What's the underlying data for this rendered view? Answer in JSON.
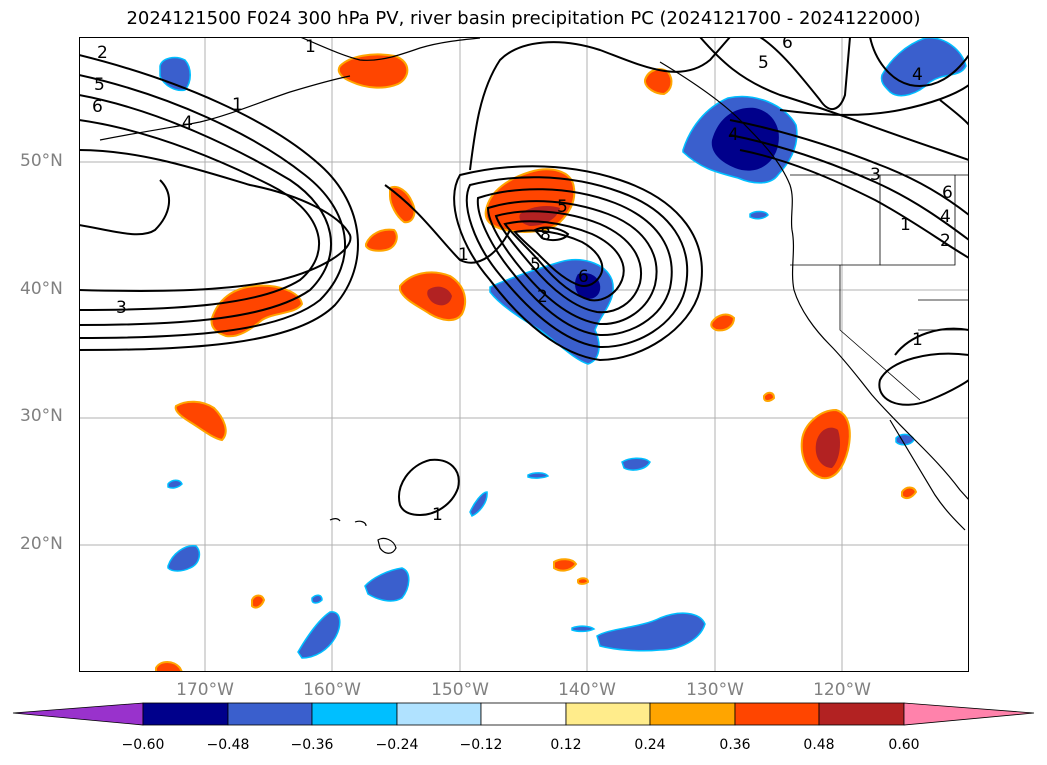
{
  "title": "2024121500 F024 300 hPa PV, river basin precipitation PC (2024121700 - 2024122000)",
  "latitude_labels": [
    "50°N",
    "40°N",
    "30°N",
    "20°N"
  ],
  "longitude_labels": [
    "170°W",
    "160°W",
    "150°W",
    "140°W",
    "130°W",
    "120°W"
  ],
  "contour_labels": [
    "2",
    "5",
    "6",
    "1",
    "4",
    "3",
    "1",
    "5",
    "8",
    "5",
    "2",
    "6",
    "1",
    "1",
    "6",
    "5",
    "4",
    "3",
    "6",
    "4",
    "1",
    "2",
    "4",
    "1"
  ],
  "colorbar": {
    "tick_labels": [
      "−0.60",
      "−0.48",
      "−0.36",
      "−0.24",
      "−0.12",
      "0.12",
      "0.24",
      "0.36",
      "0.48",
      "0.60"
    ],
    "colors": [
      "#9932cc",
      "#00008b",
      "#3a5fcd",
      "#00bfff",
      "#b0e2ff",
      "#ffffff",
      "#ffec8b",
      "#ffa500",
      "#ff4500",
      "#b22222",
      "#ff82ab"
    ]
  },
  "colors": {
    "negative_strong": "#00008b",
    "negative_mid": "#3a5fcd",
    "negative_light": "#00bfff",
    "positive_mid": "#ff4500",
    "positive_strong": "#b22222",
    "grid": "#b0b0b0",
    "contour": "#000000"
  }
}
